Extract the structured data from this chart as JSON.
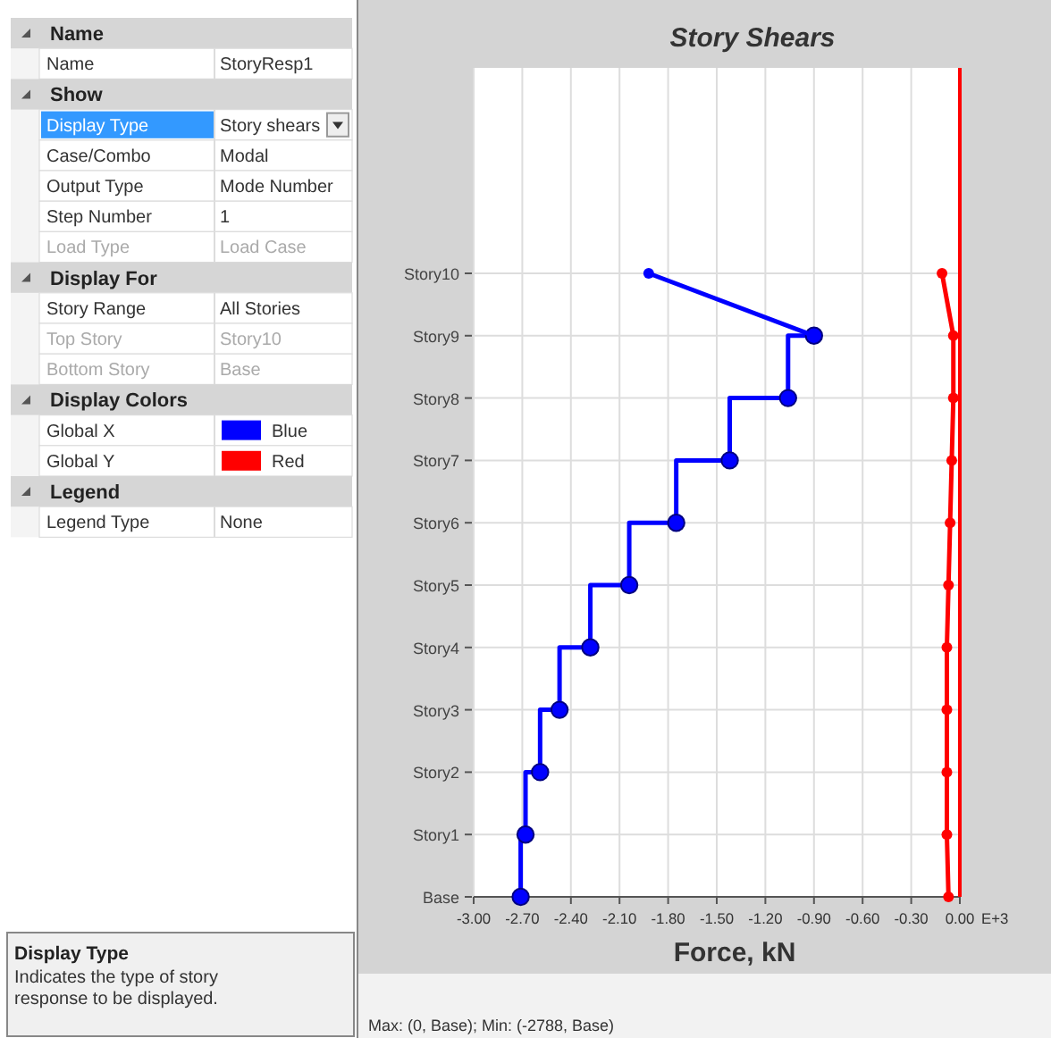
{
  "chart_data": [
    {
      "type": "other",
      "annotations": [
        "Name",
        "Name",
        "StoryResp1",
        "Show",
        "Display Type",
        "Story shears",
        "Case/Combo",
        "Modal",
        "Output Type",
        "Mode Number",
        "Step Number",
        "1",
        "Load Type",
        "Load Case",
        "Display For",
        "Story Range",
        "All Stories",
        "Top Story",
        "Story10",
        "Bottom Story",
        "Base",
        "Display Colors",
        "Global X",
        "Blue",
        "Global Y",
        "Red",
        "Legend",
        "Legend Type",
        "None",
        "Display Type",
        "Indicates the type of story response to be displayed."
      ]
    },
    {
      "type": "line",
      "title": "Story Shears",
      "xlabel": "Force, kN",
      "grid": true,
      "marker": "circle",
      "line_style": "solid",
      "orientation": "horizontal",
      "xlim": [
        -3,
        0
      ],
      "categories": [
        "Story10",
        "Story9",
        "Story8",
        "Story7",
        "Story6",
        "Story5",
        "Story4",
        "Story3",
        "Story2",
        "Story1",
        "Base"
      ],
      "xticks": [
        {
          "value": -3,
          "label": "-3.00"
        },
        {
          "value": -2.7,
          "label": "-2.70"
        },
        {
          "value": -2.4,
          "label": "-2.40"
        },
        {
          "value": -2.1,
          "label": "-2.10"
        },
        {
          "value": -1.8,
          "label": "-1.80"
        },
        {
          "value": -1.5,
          "label": "-1.50"
        },
        {
          "value": -1.2,
          "label": "-1.20"
        },
        {
          "value": -0.9,
          "label": "-0.90"
        },
        {
          "value": -0.6,
          "label": "-0.60"
        },
        {
          "value": -0.3,
          "label": "-0.30"
        },
        {
          "value": 0,
          "label": "0.00"
        }
      ],
      "ref_lines": [
        {
          "axis": "x",
          "value": 0,
          "color": "#ff0000"
        }
      ],
      "annotations": [
        "E+3",
        "Max: (0, Base);  Min: (-2788, Base)"
      ],
      "series": [
        {
          "type": "step",
          "color": "#0000ff",
          "values": [
            null,
            -0.9,
            -1.06,
            -1.42,
            -1.75,
            -2.04,
            -2.28,
            -2.47,
            -2.59,
            -2.68,
            -2.71
          ]
        },
        {
          "type": "line",
          "color": "#0000ff",
          "values": [
            -1.92,
            -0.9,
            null,
            null,
            null,
            null,
            null,
            null,
            null,
            null,
            null
          ]
        },
        {
          "type": "line",
          "color": "#ff0000",
          "values": [
            -0.11,
            -0.04,
            -0.04,
            -0.05,
            -0.06,
            -0.07,
            -0.08,
            -0.08,
            -0.08,
            -0.08,
            -0.07
          ]
        }
      ]
    }
  ]
}
